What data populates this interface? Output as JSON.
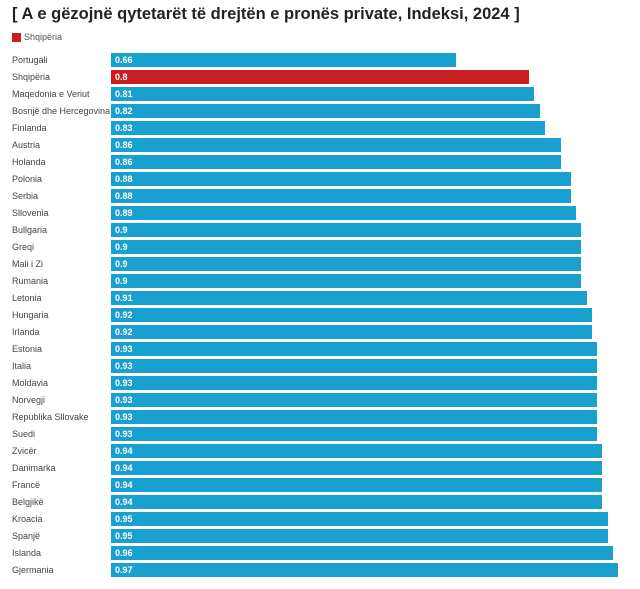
{
  "chart_data": {
    "type": "bar",
    "orientation": "horizontal",
    "title": "[ A e gëzojnë qytetarët të drejtën e pronës private, Indeksi, 2024 ]",
    "legend": [
      {
        "label": "Shqipëria",
        "color": "#c91f23"
      }
    ],
    "legend_placement": "top-left",
    "colors": {
      "default": "#1aa0cf",
      "highlight": "#c91f23"
    },
    "highlight": "Shqipëria",
    "xlim": [
      0,
      0.97
    ],
    "grid": false,
    "categories": [
      "Portugali",
      "Shqipëria",
      "Maqedonia e Veriut",
      "Bosnjë dhe Hercegovina",
      "Finlanda",
      "Austria",
      "Holanda",
      "Polonia",
      "Serbia",
      "Sllovenia",
      "Bullgaria",
      "Greqi",
      "Mali i Zi",
      "Rumania",
      "Letonia",
      "Hungaria",
      "Irlanda",
      "Estonia",
      "Italia",
      "Moldavia",
      "Norvegji",
      "Republika Sllovake",
      "Suedi",
      "Zvicër",
      "Danimarka",
      "Francë",
      "Belgjikë",
      "Kroacia",
      "Spanjë",
      "Islanda",
      "Gjermania"
    ],
    "values": [
      0.66,
      0.8,
      0.81,
      0.82,
      0.83,
      0.86,
      0.86,
      0.88,
      0.88,
      0.89,
      0.9,
      0.9,
      0.9,
      0.9,
      0.91,
      0.92,
      0.92,
      0.93,
      0.93,
      0.93,
      0.93,
      0.93,
      0.93,
      0.94,
      0.94,
      0.94,
      0.94,
      0.95,
      0.95,
      0.96,
      0.97
    ]
  }
}
